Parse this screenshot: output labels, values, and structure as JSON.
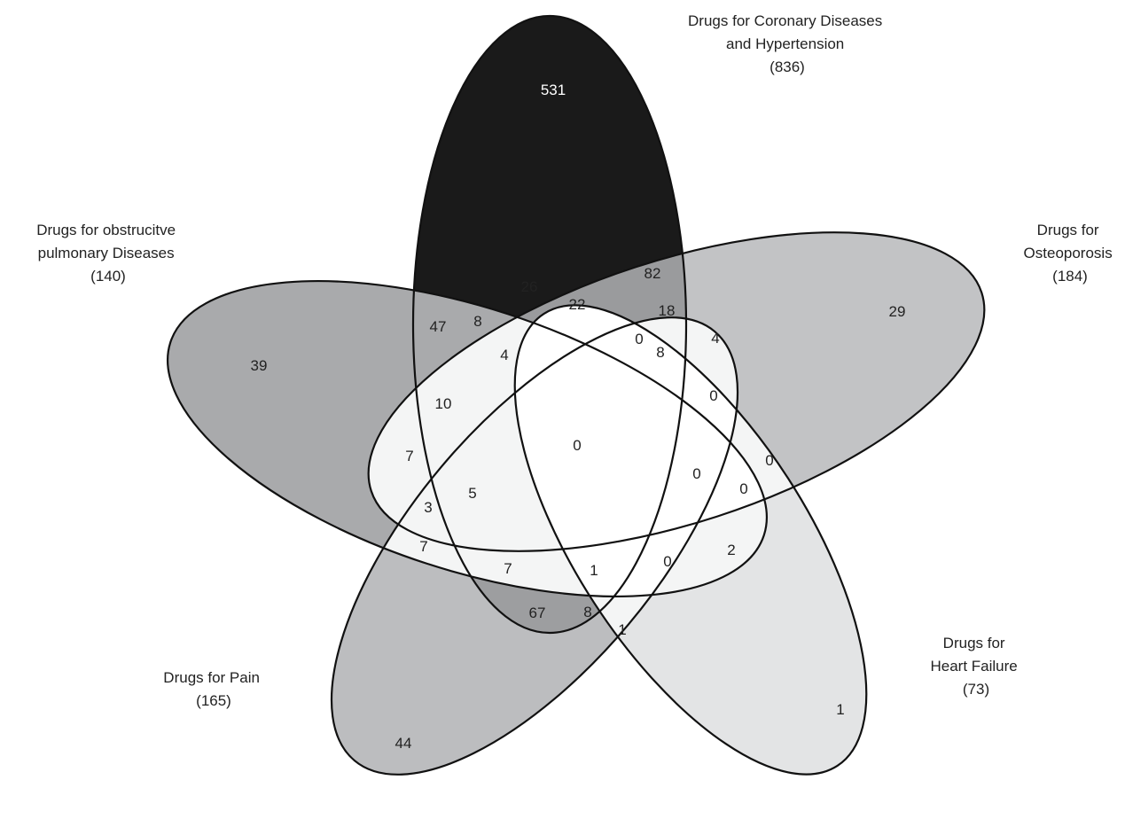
{
  "sets": {
    "coronary": {
      "label_lines": [
        "Drugs for Coronary Diseases",
        "and Hypertension",
        "(836)"
      ]
    },
    "osteoporosis": {
      "label_lines": [
        "Drugs for",
        "Osteoporosis",
        "(184)"
      ]
    },
    "heart_failure": {
      "label_lines": [
        "Drugs for",
        "Heart Failure",
        "(73)"
      ]
    },
    "pain": {
      "label_lines": [
        "Drugs for Pain",
        "(165)"
      ]
    },
    "pulmonary": {
      "label_lines": [
        "Drugs for obstrucitve",
        "pulmonary Diseases",
        "(140)"
      ]
    }
  },
  "regions": [
    {
      "value": "531"
    },
    {
      "value": "29"
    },
    {
      "value": "1"
    },
    {
      "value": "44"
    },
    {
      "value": "39"
    },
    {
      "value": "82"
    },
    {
      "value": "26"
    },
    {
      "value": "22"
    },
    {
      "value": "18"
    },
    {
      "value": "47"
    },
    {
      "value": "8"
    },
    {
      "value": "4"
    },
    {
      "value": "0"
    },
    {
      "value": "8"
    },
    {
      "value": "4"
    },
    {
      "value": "10"
    },
    {
      "value": "0"
    },
    {
      "value": "0"
    },
    {
      "value": "7"
    },
    {
      "value": "0"
    },
    {
      "value": "0"
    },
    {
      "value": "0"
    },
    {
      "value": "3"
    },
    {
      "value": "5"
    },
    {
      "value": "7"
    },
    {
      "value": "2"
    },
    {
      "value": "7"
    },
    {
      "value": "1"
    },
    {
      "value": "0"
    },
    {
      "value": "67"
    },
    {
      "value": "8"
    },
    {
      "value": "1"
    }
  ],
  "colors": {
    "coronary_fill": "#1a1a1a",
    "osteoporosis_fill": "#c2c3c5",
    "heart_failure_fill": "#e3e4e5",
    "pain_fill": "#bcbdbf",
    "pulmonary_fill": "#a9aaac",
    "overlap_light": "#f4f5f5",
    "outline": "#111111",
    "text_light": "#ffffff"
  }
}
